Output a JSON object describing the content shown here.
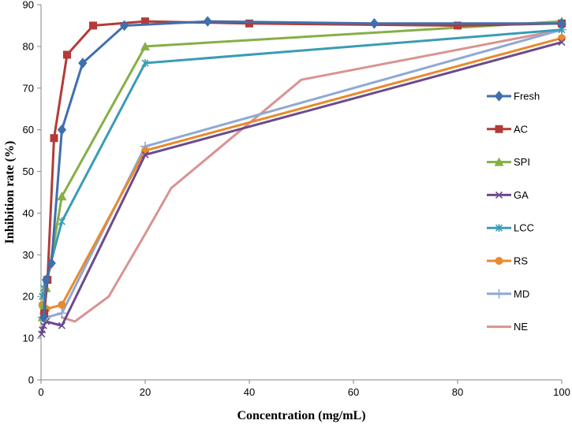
{
  "chart_data": {
    "type": "line",
    "title": "",
    "xlabel": "Concentration (mg/mL)",
    "ylabel": "Inhibition rate (%)",
    "xlim": [
      0,
      100
    ],
    "ylim": [
      0,
      90
    ],
    "xticks": [
      0,
      20,
      40,
      60,
      80,
      100
    ],
    "yticks": [
      0,
      10,
      20,
      30,
      40,
      50,
      60,
      70,
      80,
      90
    ],
    "grid": false,
    "legend_position": "right",
    "series": [
      {
        "name": "Fresh",
        "color": "#3F6FAE",
        "marker": "diamond",
        "x": [
          0.5,
          1,
          2,
          4,
          8,
          16,
          32,
          64,
          100
        ],
        "y": [
          15,
          24,
          28,
          60,
          76,
          85,
          86,
          85.5,
          85.5
        ]
      },
      {
        "name": "AC",
        "color": "#B33B37",
        "marker": "square",
        "x": [
          0.625,
          1.25,
          2.5,
          5,
          10,
          20,
          40,
          80,
          100
        ],
        "y": [
          16,
          24,
          58,
          78,
          85,
          86,
          85.5,
          85,
          85.5
        ]
      },
      {
        "name": "SPI",
        "color": "#86AF45",
        "marker": "triangle",
        "x": [
          0.25,
          0.5,
          1,
          4,
          20,
          100
        ],
        "y": [
          15,
          18,
          22,
          44,
          80,
          86
        ]
      },
      {
        "name": "GA",
        "color": "#6B4A8E",
        "marker": "x",
        "x": [
          0.125,
          0.25,
          0.5,
          1,
          4,
          20,
          100
        ],
        "y": [
          11,
          12,
          13,
          14,
          13,
          54,
          81
        ]
      },
      {
        "name": "LCC",
        "color": "#3A9CB5",
        "marker": "star",
        "x": [
          0.25,
          0.5,
          1,
          4,
          20,
          100
        ],
        "y": [
          20,
          22,
          24,
          38,
          76,
          84
        ]
      },
      {
        "name": "RS",
        "color": "#E88A2E",
        "marker": "circle",
        "x": [
          0.25,
          0.5,
          1,
          4,
          20,
          100
        ],
        "y": [
          18,
          16,
          17,
          18,
          55,
          82
        ]
      },
      {
        "name": "MD",
        "color": "#8FA9D4",
        "marker": "plus",
        "x": [
          0.25,
          0.5,
          1,
          4,
          20,
          100
        ],
        "y": [
          15,
          15,
          15,
          16,
          56,
          84
        ]
      },
      {
        "name": "NE",
        "color": "#D99391",
        "marker": "none",
        "x": [
          4,
          6.5,
          13,
          20,
          25,
          50,
          100
        ],
        "y": [
          15,
          14,
          20,
          35,
          46,
          72,
          84
        ]
      }
    ]
  }
}
